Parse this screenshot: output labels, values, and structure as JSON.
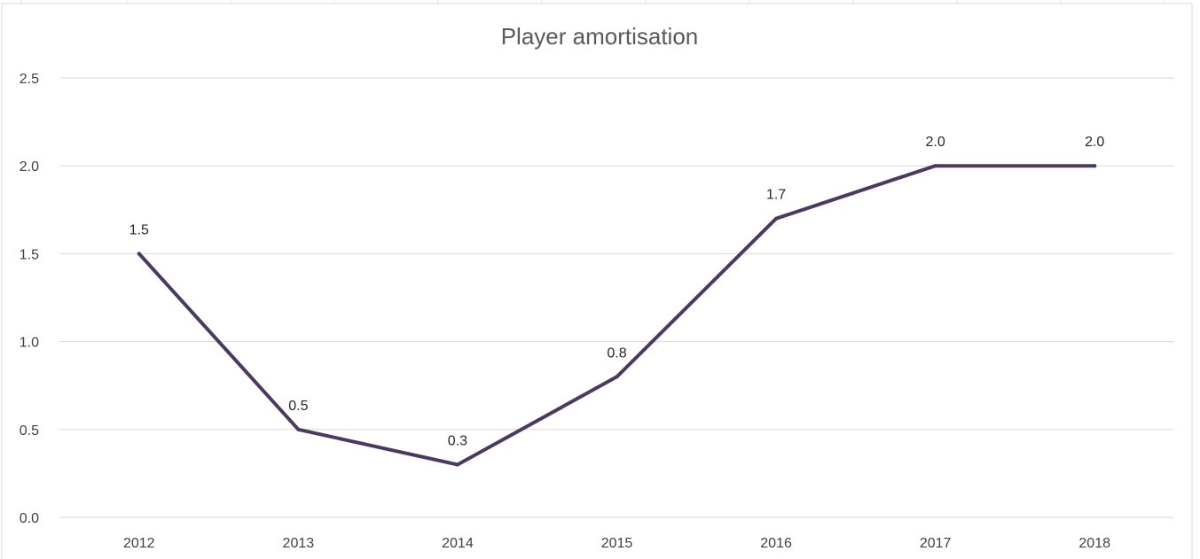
{
  "chart_data": {
    "type": "line",
    "title": "Player amortisation",
    "xlabel": "",
    "ylabel": "",
    "categories": [
      "2012",
      "2013",
      "2014",
      "2015",
      "2016",
      "2017",
      "2018"
    ],
    "series": [
      {
        "values": [
          1.5,
          0.5,
          0.3,
          0.8,
          1.7,
          2.0,
          2.0
        ],
        "data_labels": [
          "1.5",
          "0.5",
          "0.3",
          "0.8",
          "1.7",
          "2.0",
          "2.0"
        ],
        "color": "#4b3960"
      }
    ],
    "ylim": [
      0,
      2.5
    ],
    "y_ticks": [
      "0.0",
      "0.5",
      "1.0",
      "1.5",
      "2.0",
      "2.5"
    ],
    "grid": true,
    "legend": "none"
  }
}
